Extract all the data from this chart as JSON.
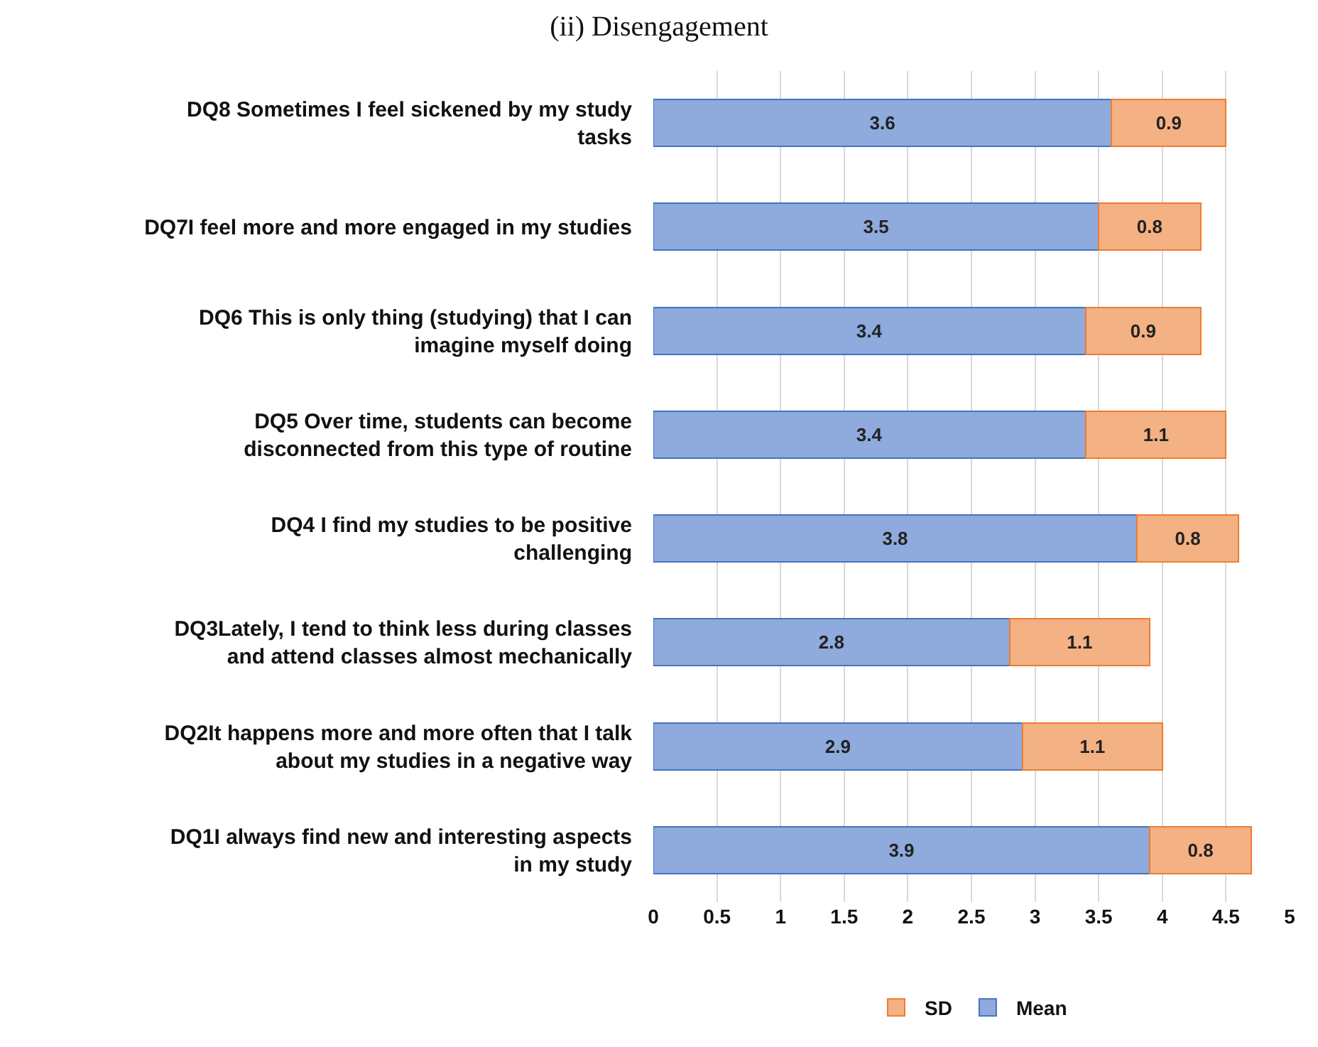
{
  "chart_data": {
    "type": "bar",
    "title": "(ii) Disengagement",
    "orientation": "horizontal",
    "stacked": true,
    "data_labels": true,
    "grid": "x",
    "legend": "bottom",
    "categories": [
      "DQ8 Sometimes I feel sickened by my study tasks",
      "DQ7I feel more and more engaged in my studies",
      "DQ6 This is only thing (studying) that I can imagine myself doing",
      "DQ5 Over time, students can become disconnected from this type of routine",
      "DQ4 I find my studies to be positive challenging",
      "DQ3Lately, I tend to think less during classes and attend classes almost mechanically",
      "DQ2It happens more and more often that I talk about my studies in a negative way",
      "DQ1I always find new and interesting aspects in my study"
    ],
    "series": [
      {
        "name": "Mean",
        "color": "#8faadc",
        "values": [
          3.6,
          3.5,
          3.4,
          3.4,
          3.8,
          2.8,
          2.9,
          3.9
        ]
      },
      {
        "name": "SD",
        "color": "#f4b183",
        "values": [
          0.9,
          0.8,
          0.9,
          1.1,
          0.8,
          1.1,
          1.1,
          0.8
        ]
      }
    ],
    "xlim": [
      0,
      5
    ],
    "xticks": [
      0,
      0.5,
      1,
      1.5,
      2,
      2.5,
      3,
      3.5,
      4,
      4.5,
      5
    ]
  }
}
